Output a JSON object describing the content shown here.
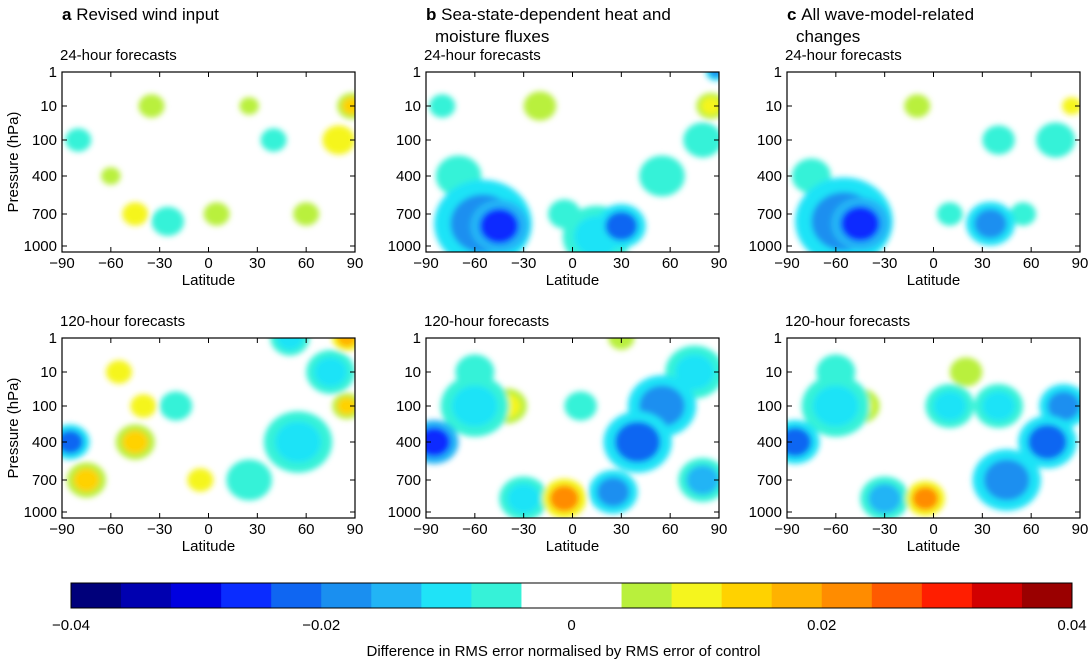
{
  "chart_data": {
    "type": "heatmap",
    "x_ticks": [
      "-90",
      "-60",
      "-30",
      "0",
      "30",
      "60",
      "90"
    ],
    "y_ticks": [
      "1",
      "10",
      "100",
      "400",
      "700",
      "1000"
    ],
    "xlim": [
      -90,
      90
    ],
    "ylabel": "Pressure (hPa)",
    "xlabel": "Latitude",
    "columns": [
      {
        "letter": "a",
        "title_lines": [
          "Revised wind input"
        ]
      },
      {
        "letter": "b",
        "title_lines": [
          "Sea-state-dependent heat and",
          "moisture fluxes"
        ]
      },
      {
        "letter": "c",
        "title_lines": [
          "All wave-model-related",
          "changes"
        ]
      }
    ],
    "rows": [
      {
        "subtitle": "24-hour forecasts"
      },
      {
        "subtitle": "120-hour forecasts"
      }
    ],
    "colorbar": {
      "min": -0.04,
      "max": 0.04,
      "tick_labels": [
        "−0.04",
        "−0.02",
        "0",
        "0.02",
        "0.04"
      ],
      "tick_values": [
        -0.04,
        -0.02,
        0,
        0.02,
        0.04
      ],
      "label": "Difference in RMS error normalised by RMS error of control",
      "colors": [
        "#00007a",
        "#0000b0",
        "#0000e0",
        "#0a2cff",
        "#0f66f2",
        "#1a8ff0",
        "#22b4f5",
        "#1fe3f7",
        "#36f2d8",
        "#ffffff",
        "#ffffff",
        "#b9f03c",
        "#f5f51e",
        "#ffd200",
        "#ffb200",
        "#ff8c00",
        "#ff5a00",
        "#ff1e00",
        "#d20000",
        "#9a0000"
      ]
    },
    "panels": [
      {
        "panel": "a-24h",
        "blobs": [
          {
            "x": -45,
            "y": 700,
            "v": 0.008,
            "r": 8
          },
          {
            "x": -25,
            "y": 760,
            "v": -0.008,
            "r": 10
          },
          {
            "x": 5,
            "y": 700,
            "v": 0.006,
            "r": 8
          },
          {
            "x": 60,
            "y": 700,
            "v": 0.006,
            "r": 8
          },
          {
            "x": 80,
            "y": 100,
            "v": 0.008,
            "r": 10
          },
          {
            "x": 88,
            "y": 10,
            "v": 0.012,
            "r": 6
          },
          {
            "x": -80,
            "y": 100,
            "v": -0.006,
            "r": 8
          },
          {
            "x": -35,
            "y": 10,
            "v": 0.006,
            "r": 8
          },
          {
            "x": 40,
            "y": 100,
            "v": -0.006,
            "r": 8
          },
          {
            "x": 25,
            "y": 10,
            "v": 0.006,
            "r": 6
          },
          {
            "x": -60,
            "y": 400,
            "v": 0.006,
            "r": 6
          }
        ]
      },
      {
        "panel": "b-24h",
        "blobs": [
          {
            "x": -45,
            "y": 800,
            "v": -0.028,
            "r": 12
          },
          {
            "x": -55,
            "y": 780,
            "v": -0.018,
            "r": 20
          },
          {
            "x": -70,
            "y": 400,
            "v": -0.008,
            "r": 14
          },
          {
            "x": 30,
            "y": 800,
            "v": -0.022,
            "r": 10
          },
          {
            "x": 15,
            "y": 900,
            "v": -0.01,
            "r": 14
          },
          {
            "x": 55,
            "y": 400,
            "v": -0.008,
            "r": 14
          },
          {
            "x": 80,
            "y": 100,
            "v": -0.008,
            "r": 12
          },
          {
            "x": 85,
            "y": 10,
            "v": 0.01,
            "r": 6
          },
          {
            "x": -20,
            "y": 10,
            "v": 0.006,
            "r": 10
          },
          {
            "x": -5,
            "y": 700,
            "v": -0.006,
            "r": 10
          },
          {
            "x": -80,
            "y": 10,
            "v": -0.006,
            "r": 8
          },
          {
            "x": 88,
            "y": 1,
            "v": -0.02,
            "r": 4
          }
        ]
      },
      {
        "panel": "c-24h",
        "blobs": [
          {
            "x": -45,
            "y": 780,
            "v": -0.025,
            "r": 12
          },
          {
            "x": -55,
            "y": 760,
            "v": -0.018,
            "r": 20
          },
          {
            "x": 35,
            "y": 780,
            "v": -0.02,
            "r": 10
          },
          {
            "x": 55,
            "y": 700,
            "v": -0.008,
            "r": 8
          },
          {
            "x": 10,
            "y": 700,
            "v": -0.008,
            "r": 8
          },
          {
            "x": -75,
            "y": 400,
            "v": -0.008,
            "r": 12
          },
          {
            "x": 75,
            "y": 100,
            "v": -0.008,
            "r": 12
          },
          {
            "x": 85,
            "y": 10,
            "v": 0.008,
            "r": 6
          },
          {
            "x": -10,
            "y": 10,
            "v": 0.006,
            "r": 8
          },
          {
            "x": 40,
            "y": 100,
            "v": -0.008,
            "r": 10
          }
        ]
      },
      {
        "panel": "a-120h",
        "blobs": [
          {
            "x": -85,
            "y": 400,
            "v": -0.022,
            "r": 8
          },
          {
            "x": -75,
            "y": 700,
            "v": 0.015,
            "r": 8
          },
          {
            "x": -45,
            "y": 400,
            "v": 0.012,
            "r": 8
          },
          {
            "x": -40,
            "y": 100,
            "v": 0.008,
            "r": 8
          },
          {
            "x": -5,
            "y": 700,
            "v": 0.008,
            "r": 8
          },
          {
            "x": 50,
            "y": 1,
            "v": -0.012,
            "r": 8
          },
          {
            "x": 55,
            "y": 400,
            "v": -0.01,
            "r": 14
          },
          {
            "x": 85,
            "y": 1,
            "v": 0.018,
            "r": 6
          },
          {
            "x": 85,
            "y": 100,
            "v": 0.015,
            "r": 6
          },
          {
            "x": 75,
            "y": 10,
            "v": -0.012,
            "r": 10
          },
          {
            "x": 25,
            "y": 700,
            "v": -0.008,
            "r": 14
          },
          {
            "x": -20,
            "y": 100,
            "v": -0.008,
            "r": 10
          },
          {
            "x": -55,
            "y": 10,
            "v": 0.008,
            "r": 8
          }
        ]
      },
      {
        "panel": "b-120h",
        "blobs": [
          {
            "x": -85,
            "y": 400,
            "v": -0.025,
            "r": 10
          },
          {
            "x": -5,
            "y": 860,
            "v": 0.02,
            "r": 9
          },
          {
            "x": -30,
            "y": 860,
            "v": -0.012,
            "r": 10
          },
          {
            "x": 40,
            "y": 400,
            "v": -0.022,
            "r": 14
          },
          {
            "x": 55,
            "y": 100,
            "v": -0.02,
            "r": 14
          },
          {
            "x": 75,
            "y": 10,
            "v": -0.012,
            "r": 12
          },
          {
            "x": 80,
            "y": 700,
            "v": -0.016,
            "r": 10
          },
          {
            "x": -60,
            "y": 100,
            "v": -0.012,
            "r": 14
          },
          {
            "x": -40,
            "y": 100,
            "v": 0.01,
            "r": 8
          },
          {
            "x": 5,
            "y": 100,
            "v": -0.006,
            "r": 10
          },
          {
            "x": -60,
            "y": 10,
            "v": -0.008,
            "r": 12
          },
          {
            "x": 25,
            "y": 800,
            "v": -0.018,
            "r": 10
          },
          {
            "x": 30,
            "y": 1,
            "v": 0.006,
            "r": 8
          }
        ]
      },
      {
        "panel": "c-120h",
        "blobs": [
          {
            "x": -85,
            "y": 400,
            "v": -0.022,
            "r": 10
          },
          {
            "x": -5,
            "y": 860,
            "v": 0.02,
            "r": 8
          },
          {
            "x": -30,
            "y": 860,
            "v": -0.014,
            "r": 10
          },
          {
            "x": 45,
            "y": 700,
            "v": -0.02,
            "r": 14
          },
          {
            "x": 70,
            "y": 400,
            "v": -0.022,
            "r": 12
          },
          {
            "x": 80,
            "y": 100,
            "v": -0.02,
            "r": 10
          },
          {
            "x": -60,
            "y": 100,
            "v": -0.012,
            "r": 14
          },
          {
            "x": -45,
            "y": 100,
            "v": 0.01,
            "r": 8
          },
          {
            "x": 10,
            "y": 100,
            "v": -0.012,
            "r": 10
          },
          {
            "x": -60,
            "y": 10,
            "v": -0.008,
            "r": 12
          },
          {
            "x": 20,
            "y": 10,
            "v": 0.006,
            "r": 10
          },
          {
            "x": 40,
            "y": 100,
            "v": -0.012,
            "r": 10
          }
        ]
      }
    ]
  }
}
